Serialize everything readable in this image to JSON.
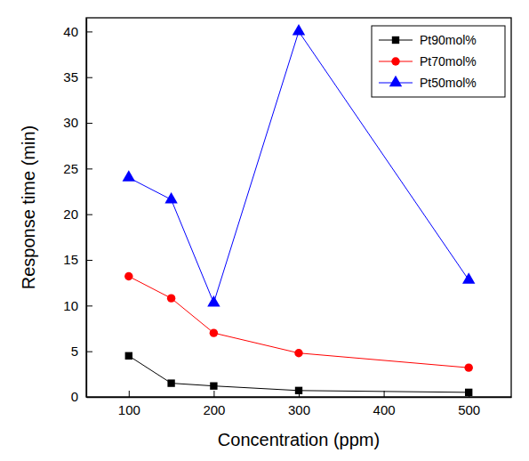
{
  "chart_data": {
    "type": "line",
    "x_label": "Concentration (ppm)",
    "y_label": "Response time (min)",
    "x": [
      100,
      150,
      200,
      300,
      500
    ],
    "series": [
      {
        "name": "Pt90mol%",
        "color": "#000000",
        "marker": "square",
        "line_style": "solid",
        "values": [
          4.5,
          1.5,
          1.2,
          0.7,
          0.5
        ]
      },
      {
        "name": "Pt70mol%",
        "color": "#ff0000",
        "marker": "circle",
        "line_style": "solid",
        "values": [
          13.2,
          10.8,
          7.0,
          4.8,
          3.2
        ]
      },
      {
        "name": "Pt50mol%",
        "color": "#0000ff",
        "marker": "triangle",
        "line_style": "solid",
        "values": [
          24.0,
          21.6,
          10.3,
          40.0,
          12.8
        ]
      }
    ],
    "xlim": [
      50,
      550
    ],
    "xticks": [
      100,
      200,
      300,
      400,
      500
    ],
    "ylim": [
      0,
      41.5
    ],
    "yticks": [
      0,
      5,
      10,
      15,
      20,
      25,
      30,
      35,
      40
    ],
    "grid": false,
    "legend": "upper right"
  }
}
